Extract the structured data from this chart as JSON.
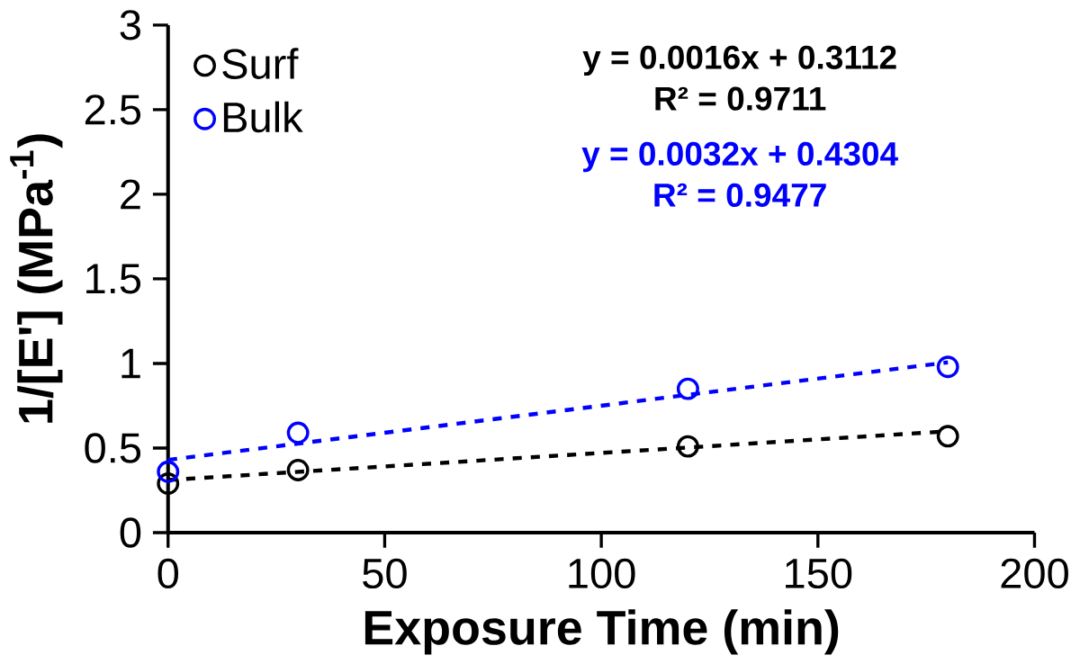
{
  "chart_data": {
    "type": "scatter",
    "xlabel": "Exposure Time (min)",
    "ylabel": "1/[E'] (MPa$^{-1}$)",
    "xlim": [
      0,
      200
    ],
    "xticks": [
      0,
      50,
      100,
      150,
      200
    ],
    "ylim": [
      0,
      3
    ],
    "yticks": [
      0,
      0.5,
      1,
      1.5,
      2,
      2.5,
      3
    ],
    "marker": "circle",
    "legend": "top left",
    "grid": false,
    "series": [
      {
        "name": "Surf",
        "color": "#000000",
        "x": [
          0,
          30,
          120,
          180
        ],
        "values": [
          0.29,
          0.37,
          0.51,
          0.57
        ]
      },
      {
        "name": "Bulk",
        "color": "#0000ff",
        "x": [
          0,
          30,
          120,
          180
        ],
        "values": [
          0.36,
          0.59,
          0.85,
          0.98
        ]
      },
      {
        "type": "line",
        "color": "#000000",
        "line_style": "dashed",
        "marker": "none",
        "x": [
          0,
          180
        ],
        "values": [
          0.3112,
          0.5992
        ]
      },
      {
        "type": "line",
        "color": "#0000ff",
        "line_style": "dashed",
        "marker": "none",
        "x": [
          0,
          180
        ],
        "values": [
          0.4304,
          1.0064
        ]
      }
    ],
    "annotations": [
      "y = 0.0016x + 0.3112",
      "R² = 0.9711",
      "y = 0.0032x + 0.4304",
      "R² = 0.9477"
    ]
  }
}
